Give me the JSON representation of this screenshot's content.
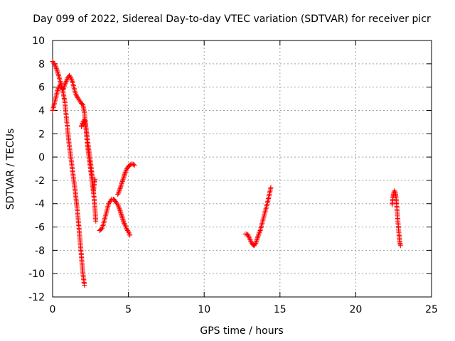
{
  "chart_data": {
    "type": "scatter",
    "title": "Day 099 of 2022, Sidereal Day-to-day VTEC variation (SDTVAR) for receiver picr",
    "xlabel": "GPS time / hours",
    "ylabel": "SDTVAR / TECUs",
    "xlim": [
      0,
      25
    ],
    "ylim": [
      -12,
      10
    ],
    "xticks": [
      0,
      5,
      10,
      15,
      20,
      25
    ],
    "yticks": [
      -12,
      -10,
      -8,
      -6,
      -4,
      -2,
      0,
      2,
      4,
      6,
      8,
      10
    ],
    "grid": true,
    "marker": "plus",
    "color": "#ff0000",
    "segments": [
      [
        [
          0.0,
          8.2
        ],
        [
          0.1,
          8.0
        ],
        [
          0.2,
          7.8
        ],
        [
          0.3,
          7.4
        ],
        [
          0.4,
          7.0
        ],
        [
          0.5,
          6.5
        ],
        [
          0.6,
          6.1
        ],
        [
          0.7,
          5.5
        ],
        [
          0.8,
          4.8
        ],
        [
          0.9,
          3.5
        ],
        [
          1.0,
          2.2
        ],
        [
          1.1,
          1.0
        ],
        [
          1.2,
          0.0
        ],
        [
          1.3,
          -1.0
        ],
        [
          1.4,
          -2.0
        ],
        [
          1.5,
          -3.0
        ],
        [
          1.6,
          -4.2
        ],
        [
          1.7,
          -5.5
        ],
        [
          1.8,
          -7.0
        ],
        [
          1.9,
          -8.5
        ],
        [
          2.0,
          -10.0
        ],
        [
          2.1,
          -11.0
        ]
      ],
      [
        [
          0.0,
          4.0
        ],
        [
          0.1,
          4.5
        ],
        [
          0.2,
          5.0
        ],
        [
          0.3,
          5.6
        ],
        [
          0.4,
          6.0
        ],
        [
          0.5,
          6.2
        ],
        [
          0.6,
          6.0
        ],
        [
          0.7,
          5.8
        ],
        [
          0.8,
          6.2
        ],
        [
          0.9,
          6.5
        ],
        [
          1.0,
          6.8
        ],
        [
          1.1,
          7.0
        ],
        [
          1.2,
          6.8
        ],
        [
          1.3,
          6.5
        ],
        [
          1.4,
          6.0
        ],
        [
          1.5,
          5.5
        ],
        [
          1.6,
          5.2
        ],
        [
          1.7,
          5.0
        ],
        [
          1.8,
          4.8
        ],
        [
          1.9,
          4.6
        ],
        [
          2.0,
          4.5
        ],
        [
          2.1,
          3.8
        ],
        [
          2.2,
          2.5
        ],
        [
          2.3,
          1.0
        ],
        [
          2.4,
          0.0
        ],
        [
          2.5,
          -1.0
        ],
        [
          2.6,
          -2.0
        ],
        [
          2.7,
          -3.0
        ],
        [
          2.8,
          -4.5
        ],
        [
          2.85,
          -5.5
        ]
      ],
      [
        [
          1.9,
          2.6
        ],
        [
          2.0,
          3.0
        ],
        [
          2.1,
          3.2
        ],
        [
          2.2,
          2.5
        ],
        [
          2.3,
          1.5
        ],
        [
          2.4,
          0.5
        ],
        [
          2.5,
          -0.5
        ],
        [
          2.6,
          -1.5
        ],
        [
          2.65,
          -2.5
        ],
        [
          2.7,
          -3.0
        ],
        [
          2.75,
          -2.2
        ],
        [
          2.8,
          -1.9
        ]
      ],
      [
        [
          3.1,
          -6.3
        ],
        [
          3.2,
          -6.2
        ],
        [
          3.3,
          -6.0
        ],
        [
          3.4,
          -5.5
        ],
        [
          3.5,
          -5.0
        ],
        [
          3.6,
          -4.5
        ],
        [
          3.7,
          -4.0
        ],
        [
          3.8,
          -3.8
        ],
        [
          3.9,
          -3.6
        ],
        [
          4.0,
          -3.6
        ],
        [
          4.1,
          -3.7
        ],
        [
          4.2,
          -3.9
        ],
        [
          4.3,
          -4.1
        ],
        [
          4.4,
          -4.4
        ],
        [
          4.5,
          -4.8
        ],
        [
          4.6,
          -5.2
        ],
        [
          4.7,
          -5.6
        ],
        [
          4.8,
          -5.9
        ],
        [
          4.9,
          -6.2
        ],
        [
          5.0,
          -6.4
        ],
        [
          5.1,
          -6.7
        ]
      ],
      [
        [
          4.3,
          -3.2
        ],
        [
          4.4,
          -2.9
        ],
        [
          4.5,
          -2.5
        ],
        [
          4.6,
          -2.1
        ],
        [
          4.7,
          -1.7
        ],
        [
          4.8,
          -1.3
        ],
        [
          4.9,
          -1.0
        ],
        [
          5.0,
          -0.8
        ],
        [
          5.1,
          -0.7
        ],
        [
          5.2,
          -0.6
        ],
        [
          5.3,
          -0.6
        ],
        [
          5.4,
          -0.7
        ]
      ],
      [
        [
          12.7,
          -6.6
        ],
        [
          12.8,
          -6.6
        ],
        [
          12.9,
          -6.7
        ],
        [
          13.0,
          -7.0
        ],
        [
          13.1,
          -7.3
        ],
        [
          13.2,
          -7.5
        ],
        [
          13.3,
          -7.6
        ],
        [
          13.4,
          -7.4
        ],
        [
          13.5,
          -7.0
        ],
        [
          13.6,
          -6.6
        ],
        [
          13.7,
          -6.3
        ],
        [
          13.8,
          -5.8
        ],
        [
          13.9,
          -5.3
        ],
        [
          14.0,
          -4.8
        ],
        [
          14.1,
          -4.3
        ],
        [
          14.2,
          -3.8
        ],
        [
          14.3,
          -3.2
        ],
        [
          14.4,
          -2.6
        ]
      ],
      [
        [
          22.4,
          -4.1
        ],
        [
          22.45,
          -3.5
        ],
        [
          22.5,
          -3.1
        ],
        [
          22.55,
          -2.9
        ],
        [
          22.6,
          -3.0
        ],
        [
          22.65,
          -3.4
        ],
        [
          22.7,
          -4.1
        ],
        [
          22.75,
          -5.0
        ],
        [
          22.8,
          -5.8
        ],
        [
          22.85,
          -6.6
        ],
        [
          22.9,
          -7.2
        ],
        [
          22.95,
          -7.6
        ]
      ]
    ]
  }
}
